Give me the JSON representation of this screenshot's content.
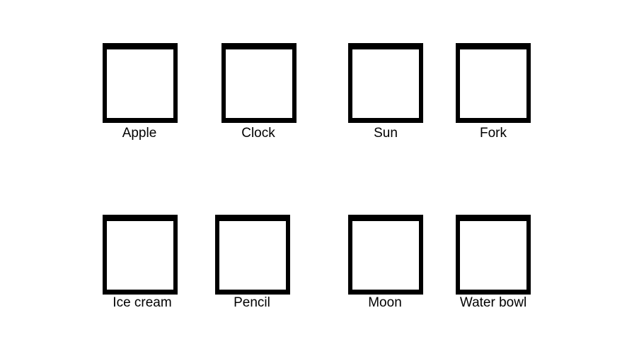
{
  "items": [
    {
      "label": "Apple"
    },
    {
      "label": "Clock"
    },
    {
      "label": "Sun"
    },
    {
      "label": "Fork"
    },
    {
      "label": "Ice cream"
    },
    {
      "label": "Pencil"
    },
    {
      "label": "Moon"
    },
    {
      "label": "Water bowl"
    }
  ]
}
